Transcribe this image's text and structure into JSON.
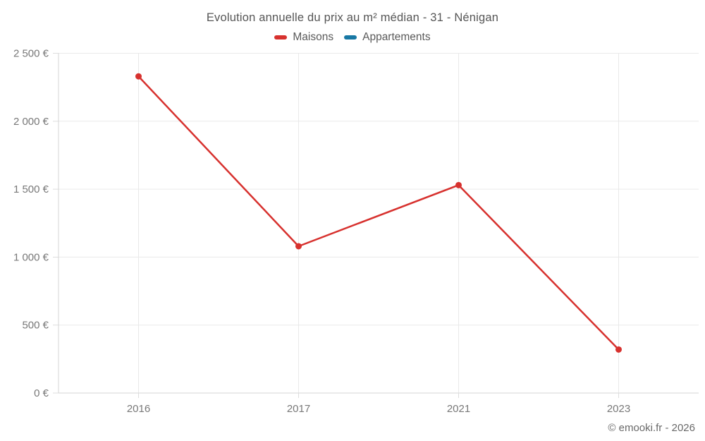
{
  "footer": {
    "text": "© emooki.fr - 2026"
  },
  "colors": {
    "maisons": "#d7312e",
    "appartements": "#1878a4",
    "gridline": "#e9e9e9",
    "axis": "#d6d6d6",
    "tick": "#dddddd",
    "tick_text": "#787878"
  },
  "chart_data": {
    "type": "line",
    "title": "Evolution annuelle du prix au m² médian - 31 - Nénigan",
    "categories": [
      "2016",
      "2017",
      "2021",
      "2023"
    ],
    "series": [
      {
        "name": "Maisons",
        "color": "#d7312e",
        "values": [
          2330,
          1080,
          1530,
          320
        ]
      },
      {
        "name": "Appartements",
        "color": "#1878a4",
        "values": []
      }
    ],
    "xlabel": "",
    "ylabel": "",
    "ylim": [
      0,
      2500
    ],
    "y_tick_values": [
      0,
      500,
      1000,
      1500,
      2000,
      2500
    ],
    "y_tick_labels": [
      "0 €",
      "500 €",
      "1 000 €",
      "1 500 €",
      "2 000 €",
      "2 500 €"
    ],
    "grid": true,
    "legend_position": "top"
  }
}
